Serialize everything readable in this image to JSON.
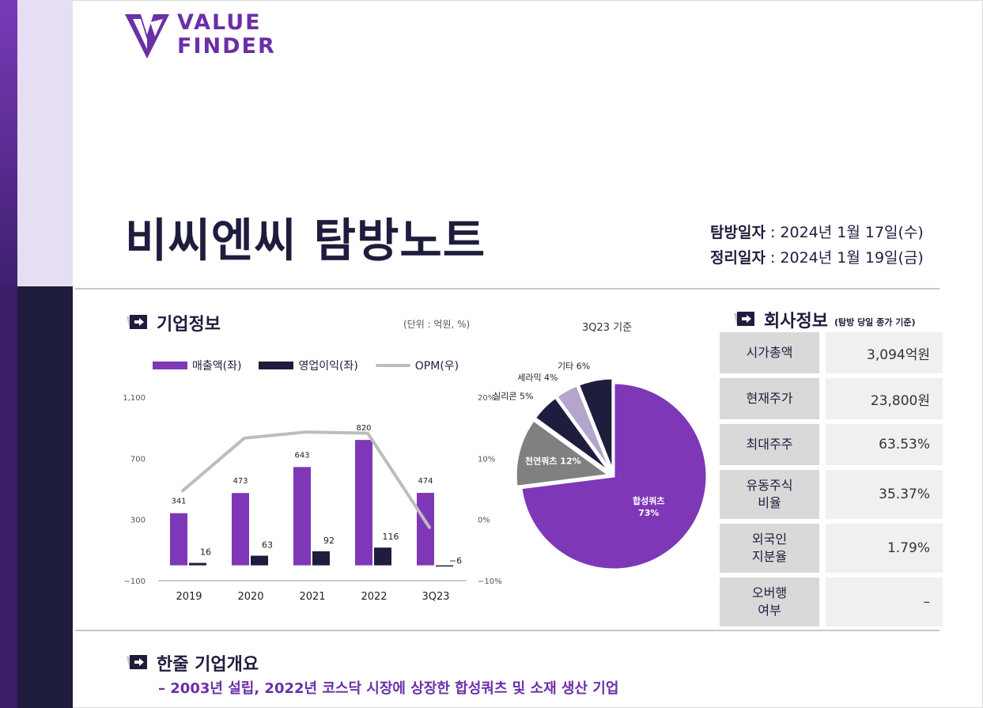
{
  "brand": {
    "line1": "VALUE",
    "line2": "FINDER",
    "color": "#6b2fa8"
  },
  "title": "비씨엔씨 탐방노트",
  "dates": {
    "visit_label": "탐방일자",
    "visit_value": " : 2024년 1월 17일(수)",
    "summary_label": "정리일자",
    "summary_value": " : 2024년 1월 19일(금)"
  },
  "company_info_section": {
    "title": "기업정보",
    "unit": "(단위 : 억원, %)"
  },
  "pie_caption": "3Q23 기준",
  "company_profile_section": {
    "title": "회사정보",
    "subtitle": "(탐방 당일 종가 기준)"
  },
  "company_profile": [
    {
      "key": "시가총액",
      "value": "3,094억원"
    },
    {
      "key": "현재주가",
      "value": "23,800원"
    },
    {
      "key": "최대주주",
      "value": "63.53%"
    },
    {
      "key": "유동주식\n비율",
      "key_line1": "유동주식",
      "key_line2": "비율",
      "value": "35.37%"
    },
    {
      "key_line1": "외국인",
      "key_line2": "지분율",
      "value": "1.79%"
    },
    {
      "key_line1": "오버행",
      "key_line2": "여부",
      "value": "–"
    }
  ],
  "overview_section": {
    "title": "한줄 기업개요"
  },
  "overview_text": "– 2003년 설립, 2022년 코스닥 시장에 상장한 합성쿼츠 및 소재 생산 기업",
  "chart_data": [
    {
      "type": "bar",
      "categories": [
        "2019",
        "2020",
        "2021",
        "2022",
        "3Q23"
      ],
      "series": [
        {
          "name": "매출액(좌)",
          "values": [
            341,
            473,
            643,
            820,
            474
          ],
          "color": "#7e38b7",
          "axis": "left"
        },
        {
          "name": "영업이익(좌)",
          "values": [
            16,
            63,
            92,
            116,
            -6
          ],
          "color": "#1f1d3d",
          "axis": "left"
        },
        {
          "name": "OPM(우)",
          "type": "line",
          "values": [
            4.7,
            13.3,
            14.3,
            14.1,
            -1.3
          ],
          "color": "#bdbdbd",
          "axis": "right"
        }
      ],
      "y_left": {
        "range": [
          -100,
          1100
        ],
        "ticks": [
          -100,
          300,
          700,
          1100
        ],
        "tick_labels": [
          "−100",
          "300",
          "700",
          "1,100"
        ]
      },
      "y_right": {
        "range": [
          -10,
          20
        ],
        "ticks": [
          -10,
          0,
          10,
          20
        ],
        "tick_labels": [
          "−10%",
          "0%",
          "10%",
          "20%"
        ]
      },
      "data_labels": {
        "revenue": [
          "341",
          "473",
          "643",
          "820",
          "474"
        ],
        "op_income": [
          "16",
          "63",
          "92",
          "116",
          "−6"
        ]
      },
      "legend": "top",
      "grid": false
    },
    {
      "type": "pie",
      "slices": [
        {
          "name": "합성쿼츠",
          "value": 73,
          "label": "73%",
          "color": "#7e38b7"
        },
        {
          "name": "천연쿼츠",
          "value": 12,
          "label": "12%",
          "color": "#808080"
        },
        {
          "name": "실리콘",
          "value": 5,
          "label": "5%",
          "color": "#1f1d3d"
        },
        {
          "name": "세라믹",
          "value": 4,
          "label": "4%",
          "color": "#b3a5cc"
        },
        {
          "name": "기타",
          "value": 6,
          "label": "6%",
          "color": "#1f1d3d"
        }
      ]
    }
  ]
}
